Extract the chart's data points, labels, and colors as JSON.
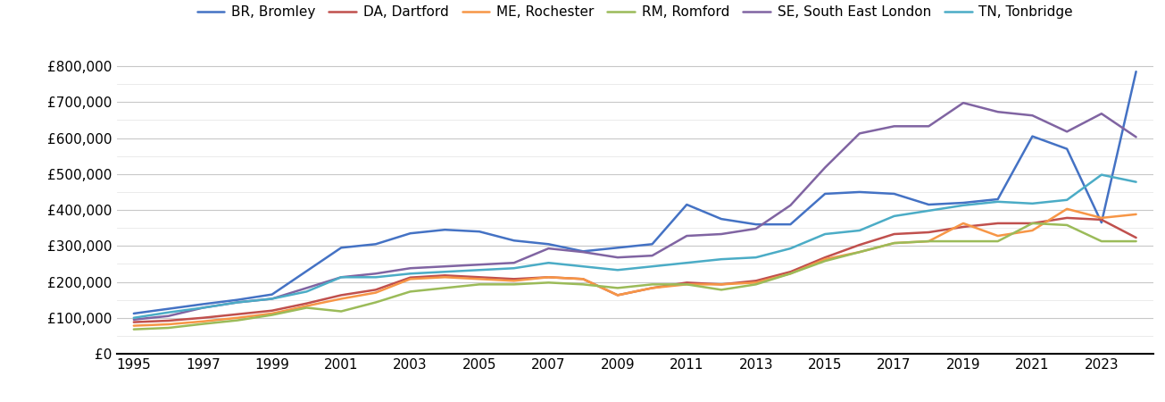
{
  "series": {
    "BR, Bromley": {
      "color": "#4472C4",
      "years": [
        1995,
        1996,
        1997,
        1998,
        1999,
        2000,
        2001,
        2002,
        2003,
        2004,
        2005,
        2006,
        2007,
        2008,
        2009,
        2010,
        2011,
        2012,
        2013,
        2014,
        2015,
        2016,
        2017,
        2018,
        2019,
        2020,
        2021,
        2022,
        2023,
        2024
      ],
      "values": [
        112000,
        125000,
        138000,
        150000,
        165000,
        230000,
        295000,
        305000,
        335000,
        345000,
        340000,
        315000,
        305000,
        285000,
        295000,
        305000,
        415000,
        375000,
        360000,
        360000,
        445000,
        450000,
        445000,
        415000,
        420000,
        430000,
        605000,
        570000,
        365000,
        785000
      ]
    },
    "DA, Dartford": {
      "color": "#C0504D",
      "years": [
        1995,
        1996,
        1997,
        1998,
        1999,
        2000,
        2001,
        2002,
        2003,
        2004,
        2005,
        2006,
        2007,
        2008,
        2009,
        2010,
        2011,
        2012,
        2013,
        2014,
        2015,
        2016,
        2017,
        2018,
        2019,
        2020,
        2021,
        2022,
        2023,
        2024
      ],
      "values": [
        88000,
        92000,
        100000,
        110000,
        120000,
        140000,
        163000,
        178000,
        212000,
        218000,
        213000,
        208000,
        213000,
        208000,
        163000,
        183000,
        198000,
        193000,
        203000,
        228000,
        268000,
        303000,
        333000,
        338000,
        353000,
        363000,
        363000,
        378000,
        373000,
        323000
      ]
    },
    "ME, Rochester": {
      "color": "#F79646",
      "years": [
        1995,
        1996,
        1997,
        1998,
        1999,
        2000,
        2001,
        2002,
        2003,
        2004,
        2005,
        2006,
        2007,
        2008,
        2009,
        2010,
        2011,
        2012,
        2013,
        2014,
        2015,
        2016,
        2017,
        2018,
        2019,
        2020,
        2021,
        2022,
        2023,
        2024
      ],
      "values": [
        78000,
        82000,
        90000,
        100000,
        112000,
        133000,
        153000,
        170000,
        208000,
        213000,
        208000,
        203000,
        213000,
        208000,
        163000,
        183000,
        193000,
        193000,
        198000,
        223000,
        263000,
        283000,
        308000,
        313000,
        363000,
        328000,
        343000,
        403000,
        378000,
        388000
      ]
    },
    "RM, Romford": {
      "color": "#9BBB59",
      "years": [
        1995,
        1996,
        1997,
        1998,
        1999,
        2000,
        2001,
        2002,
        2003,
        2004,
        2005,
        2006,
        2007,
        2008,
        2009,
        2010,
        2011,
        2012,
        2013,
        2014,
        2015,
        2016,
        2017,
        2018,
        2019,
        2020,
        2021,
        2022,
        2023,
        2024
      ],
      "values": [
        68000,
        72000,
        83000,
        93000,
        108000,
        128000,
        118000,
        143000,
        173000,
        183000,
        193000,
        193000,
        198000,
        193000,
        183000,
        193000,
        193000,
        178000,
        193000,
        223000,
        258000,
        283000,
        308000,
        313000,
        313000,
        313000,
        363000,
        358000,
        313000,
        313000
      ]
    },
    "SE, South East London": {
      "color": "#8064A2",
      "years": [
        1995,
        1996,
        1997,
        1998,
        1999,
        2000,
        2001,
        2002,
        2003,
        2004,
        2005,
        2006,
        2007,
        2008,
        2009,
        2010,
        2011,
        2012,
        2013,
        2014,
        2015,
        2016,
        2017,
        2018,
        2019,
        2020,
        2021,
        2022,
        2023,
        2024
      ],
      "values": [
        95000,
        105000,
        128000,
        143000,
        153000,
        183000,
        213000,
        223000,
        238000,
        243000,
        248000,
        253000,
        293000,
        283000,
        268000,
        273000,
        328000,
        333000,
        348000,
        413000,
        518000,
        613000,
        633000,
        633000,
        698000,
        673000,
        663000,
        618000,
        668000,
        603000
      ]
    },
    "TN, Tonbridge": {
      "color": "#4BACC6",
      "years": [
        1995,
        1996,
        1997,
        1998,
        1999,
        2000,
        2001,
        2002,
        2003,
        2004,
        2005,
        2006,
        2007,
        2008,
        2009,
        2010,
        2011,
        2012,
        2013,
        2014,
        2015,
        2016,
        2017,
        2018,
        2019,
        2020,
        2021,
        2022,
        2023,
        2024
      ],
      "values": [
        100000,
        115000,
        128000,
        143000,
        153000,
        173000,
        213000,
        213000,
        223000,
        228000,
        233000,
        238000,
        253000,
        243000,
        233000,
        243000,
        253000,
        263000,
        268000,
        293000,
        333000,
        343000,
        383000,
        398000,
        413000,
        423000,
        418000,
        428000,
        498000,
        478000
      ]
    }
  },
  "ylim": [
    0,
    850000
  ],
  "yticks_major": [
    0,
    100000,
    200000,
    300000,
    400000,
    500000,
    600000,
    700000,
    800000
  ],
  "yticks_minor": [
    50000,
    150000,
    250000,
    350000,
    450000,
    550000,
    650000,
    750000
  ],
  "xticks": [
    1995,
    1997,
    1999,
    2001,
    2003,
    2005,
    2007,
    2009,
    2011,
    2013,
    2015,
    2017,
    2019,
    2021,
    2023
  ],
  "legend_order": [
    "BR, Bromley",
    "DA, Dartford",
    "ME, Rochester",
    "RM, Romford",
    "SE, South East London",
    "TN, Tonbridge"
  ],
  "background_color": "#ffffff",
  "grid_color_major": "#c8c8c8",
  "grid_color_minor": "#e8e8e8",
  "xlim_left": 1994.5,
  "xlim_right": 2024.5,
  "linewidth": 1.8,
  "tick_fontsize": 11,
  "legend_fontsize": 11
}
